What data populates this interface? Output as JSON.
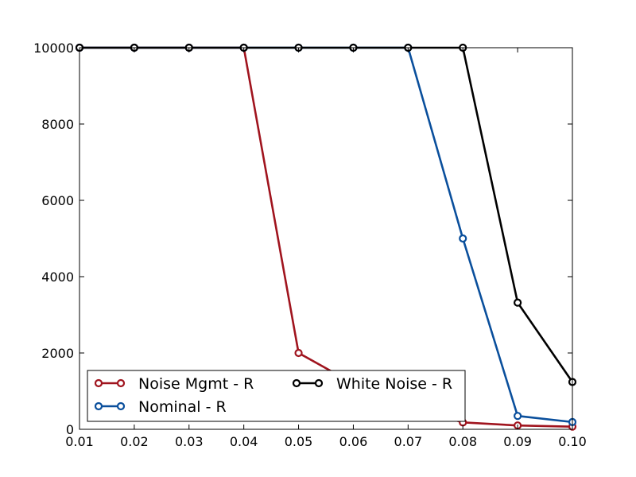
{
  "chart_data": {
    "type": "line",
    "title": "",
    "xlabel": "",
    "ylabel": "",
    "xlim": [
      0.01,
      0.1
    ],
    "ylim": [
      0,
      10000
    ],
    "x_ticks": [
      "0.01",
      "0.02",
      "0.03",
      "0.04",
      "0.05",
      "0.06",
      "0.07",
      "0.08",
      "0.09",
      "0.10"
    ],
    "y_ticks": [
      "0",
      "2000",
      "4000",
      "6000",
      "8000",
      "10000"
    ],
    "grid": false,
    "legend_position": "lower-left",
    "series": [
      {
        "name": "Noise Mgmt - R",
        "color": "#a0141e",
        "x": [
          0.01,
          0.02,
          0.03,
          0.04,
          0.05,
          0.06,
          0.07,
          0.08,
          0.09,
          0.1
        ],
        "y": [
          10000,
          10000,
          10000,
          10000,
          2000,
          1200,
          600,
          180,
          100,
          70
        ]
      },
      {
        "name": "Nominal - R",
        "color": "#0a4f9c",
        "x": [
          0.01,
          0.02,
          0.03,
          0.04,
          0.05,
          0.06,
          0.07,
          0.08,
          0.09,
          0.1
        ],
        "y": [
          10000,
          10000,
          10000,
          10000,
          10000,
          10000,
          10000,
          5000,
          350,
          190
        ]
      },
      {
        "name": "White Noise - R",
        "color": "#000000",
        "x": [
          0.01,
          0.02,
          0.03,
          0.04,
          0.05,
          0.06,
          0.07,
          0.08,
          0.09,
          0.1
        ],
        "y": [
          10000,
          10000,
          10000,
          10000,
          10000,
          10000,
          10000,
          10000,
          3320,
          1240
        ]
      }
    ]
  }
}
